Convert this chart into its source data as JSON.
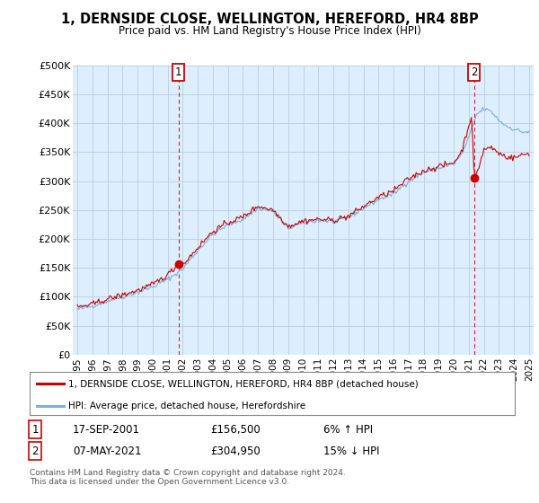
{
  "title": "1, DERNSIDE CLOSE, WELLINGTON, HEREFORD, HR4 8BP",
  "subtitle": "Price paid vs. HM Land Registry's House Price Index (HPI)",
  "legend_line1": "1, DERNSIDE CLOSE, WELLINGTON, HEREFORD, HR4 8BP (detached house)",
  "legend_line2": "HPI: Average price, detached house, Herefordshire",
  "annotation1_label": "1",
  "annotation1_date": "17-SEP-2001",
  "annotation1_price": "£156,500",
  "annotation1_hpi": "6% ↑ HPI",
  "annotation2_label": "2",
  "annotation2_date": "07-MAY-2021",
  "annotation2_price": "£304,950",
  "annotation2_hpi": "15% ↓ HPI",
  "footer": "Contains HM Land Registry data © Crown copyright and database right 2024.\nThis data is licensed under the Open Government Licence v3.0.",
  "line_color_property": "#cc0000",
  "line_color_hpi": "#7ab0d4",
  "marker_color_property": "#cc0000",
  "background_color": "#ffffff",
  "chart_bg_color": "#ddeeff",
  "grid_color": "#bbccdd",
  "ylim": [
    0,
    500000
  ],
  "yticks": [
    0,
    50000,
    100000,
    150000,
    200000,
    250000,
    300000,
    350000,
    400000,
    450000,
    500000
  ],
  "sale1_x": 2001.71,
  "sale1_y": 156500,
  "sale2_x": 2021.35,
  "sale2_y": 304950,
  "xlim_left": 1994.7,
  "xlim_right": 2025.3
}
